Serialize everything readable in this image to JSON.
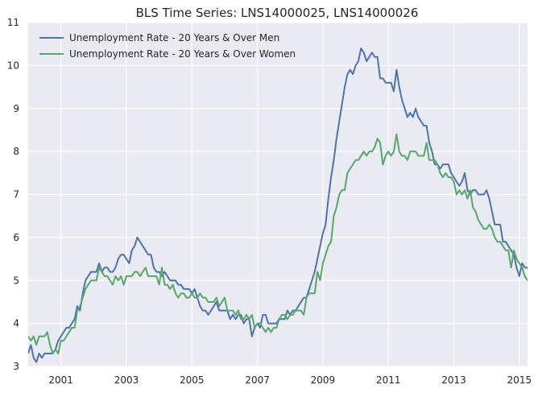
{
  "chart_data": {
    "type": "line",
    "title": "BLS Time Series: LNS14000025, LNS14000026",
    "xlabel": "",
    "ylabel": "",
    "xlim": [
      2000.0,
      2015.25
    ],
    "ylim": [
      3,
      11
    ],
    "x_ticks": [
      "2001",
      "2003",
      "2005",
      "2007",
      "2009",
      "2011",
      "2013",
      "2015"
    ],
    "y_ticks": [
      "3",
      "4",
      "5",
      "6",
      "7",
      "8",
      "9",
      "10",
      "11"
    ],
    "grid": true,
    "legend_position": "top-left",
    "colors": {
      "background": "#eaeaf2",
      "grid": "#ffffff",
      "men": "#4c72b0",
      "women": "#55a868"
    },
    "series": [
      {
        "name": "Unemployment Rate - 20 Years & Over Men",
        "color": "#4c72b0",
        "start": "2000-01",
        "frequency": "monthly",
        "values": [
          3.3,
          3.5,
          3.2,
          3.1,
          3.3,
          3.2,
          3.3,
          3.3,
          3.3,
          3.3,
          3.4,
          3.6,
          3.7,
          3.8,
          3.9,
          3.9,
          4.0,
          4.1,
          4.4,
          4.3,
          4.7,
          5.0,
          5.1,
          5.2,
          5.2,
          5.2,
          5.4,
          5.2,
          5.3,
          5.3,
          5.2,
          5.2,
          5.3,
          5.5,
          5.6,
          5.6,
          5.5,
          5.4,
          5.7,
          5.8,
          6.0,
          5.9,
          5.8,
          5.7,
          5.6,
          5.6,
          5.3,
          5.2,
          5.2,
          5.1,
          5.2,
          5.1,
          5.0,
          5.0,
          5.0,
          4.9,
          4.9,
          4.8,
          4.8,
          4.8,
          4.7,
          4.8,
          4.6,
          4.4,
          4.3,
          4.3,
          4.2,
          4.3,
          4.4,
          4.5,
          4.3,
          4.3,
          4.3,
          4.3,
          4.1,
          4.2,
          4.1,
          4.2,
          4.2,
          4.0,
          4.1,
          4.1,
          3.7,
          3.9,
          4.0,
          3.9,
          4.2,
          4.2,
          4.0,
          4.0,
          4.0,
          4.0,
          4.1,
          4.1,
          4.1,
          4.3,
          4.2,
          4.3,
          4.3,
          4.4,
          4.5,
          4.6,
          4.6,
          4.8,
          5.0,
          5.2,
          5.5,
          5.8,
          6.1,
          6.3,
          6.9,
          7.4,
          7.8,
          8.3,
          8.7,
          9.1,
          9.5,
          9.8,
          9.9,
          9.8,
          10.0,
          10.1,
          10.4,
          10.3,
          10.1,
          10.2,
          10.3,
          10.2,
          10.2,
          9.7,
          9.7,
          9.6,
          9.6,
          9.6,
          9.4,
          9.9,
          9.5,
          9.2,
          9.0,
          8.8,
          8.9,
          8.8,
          9.0,
          8.8,
          8.7,
          8.6,
          8.6,
          8.2,
          8.0,
          7.7,
          7.7,
          7.6,
          7.7,
          7.7,
          7.7,
          7.5,
          7.4,
          7.3,
          7.2,
          7.3,
          7.5,
          7.1,
          7.0,
          7.1,
          7.1,
          7.0,
          7.0,
          7.0,
          7.1,
          6.9,
          6.6,
          6.3,
          6.3,
          6.3,
          5.9,
          5.9,
          5.8,
          5.7,
          5.6,
          5.3,
          5.1,
          5.4,
          5.3,
          5.3,
          5.2,
          5.1
        ]
      },
      {
        "name": "Unemployment Rate - 20 Years & Over Women",
        "color": "#55a868",
        "start": "2000-01",
        "frequency": "monthly",
        "values": [
          3.7,
          3.6,
          3.7,
          3.5,
          3.7,
          3.7,
          3.7,
          3.8,
          3.5,
          3.3,
          3.4,
          3.3,
          3.6,
          3.6,
          3.7,
          3.8,
          3.9,
          3.9,
          4.3,
          4.4,
          4.6,
          4.8,
          4.9,
          5.0,
          5.0,
          5.0,
          5.3,
          5.2,
          5.1,
          5.1,
          5.0,
          4.9,
          5.1,
          5.0,
          5.1,
          4.9,
          5.1,
          5.1,
          5.1,
          5.2,
          5.2,
          5.1,
          5.2,
          5.3,
          5.1,
          5.1,
          5.1,
          5.1,
          4.9,
          5.3,
          4.9,
          4.9,
          4.8,
          4.9,
          4.7,
          4.6,
          4.7,
          4.7,
          4.6,
          4.6,
          4.7,
          4.6,
          4.6,
          4.7,
          4.6,
          4.6,
          4.5,
          4.5,
          4.5,
          4.6,
          4.4,
          4.5,
          4.6,
          4.3,
          4.3,
          4.3,
          4.2,
          4.3,
          4.1,
          4.1,
          4.2,
          4.1,
          4.2,
          3.9,
          4.0,
          4.0,
          3.9,
          3.8,
          3.9,
          3.8,
          3.9,
          3.9,
          4.1,
          4.2,
          4.2,
          4.1,
          4.2,
          4.2,
          4.3,
          4.3,
          4.3,
          4.2,
          4.6,
          4.7,
          4.7,
          4.7,
          5.2,
          5.0,
          5.4,
          5.6,
          5.8,
          5.9,
          6.5,
          6.7,
          7.0,
          7.1,
          7.1,
          7.5,
          7.6,
          7.7,
          7.8,
          7.8,
          7.9,
          8.0,
          7.9,
          8.0,
          8.0,
          8.1,
          8.3,
          8.2,
          7.7,
          7.9,
          8.0,
          7.9,
          8.0,
          8.4,
          8.0,
          7.9,
          7.9,
          7.8,
          8.0,
          8.0,
          8.0,
          7.9,
          7.9,
          7.9,
          8.2,
          7.8,
          7.8,
          7.8,
          7.7,
          7.5,
          7.4,
          7.5,
          7.4,
          7.4,
          7.3,
          7.0,
          7.1,
          7.0,
          7.1,
          6.9,
          7.1,
          6.7,
          6.6,
          6.4,
          6.3,
          6.2,
          6.2,
          6.3,
          6.2,
          6.0,
          5.9,
          5.9,
          5.8,
          5.7,
          5.7,
          5.3,
          5.7,
          5.5,
          5.4,
          5.3,
          5.1,
          5.0,
          5.0,
          4.9
        ]
      }
    ]
  }
}
